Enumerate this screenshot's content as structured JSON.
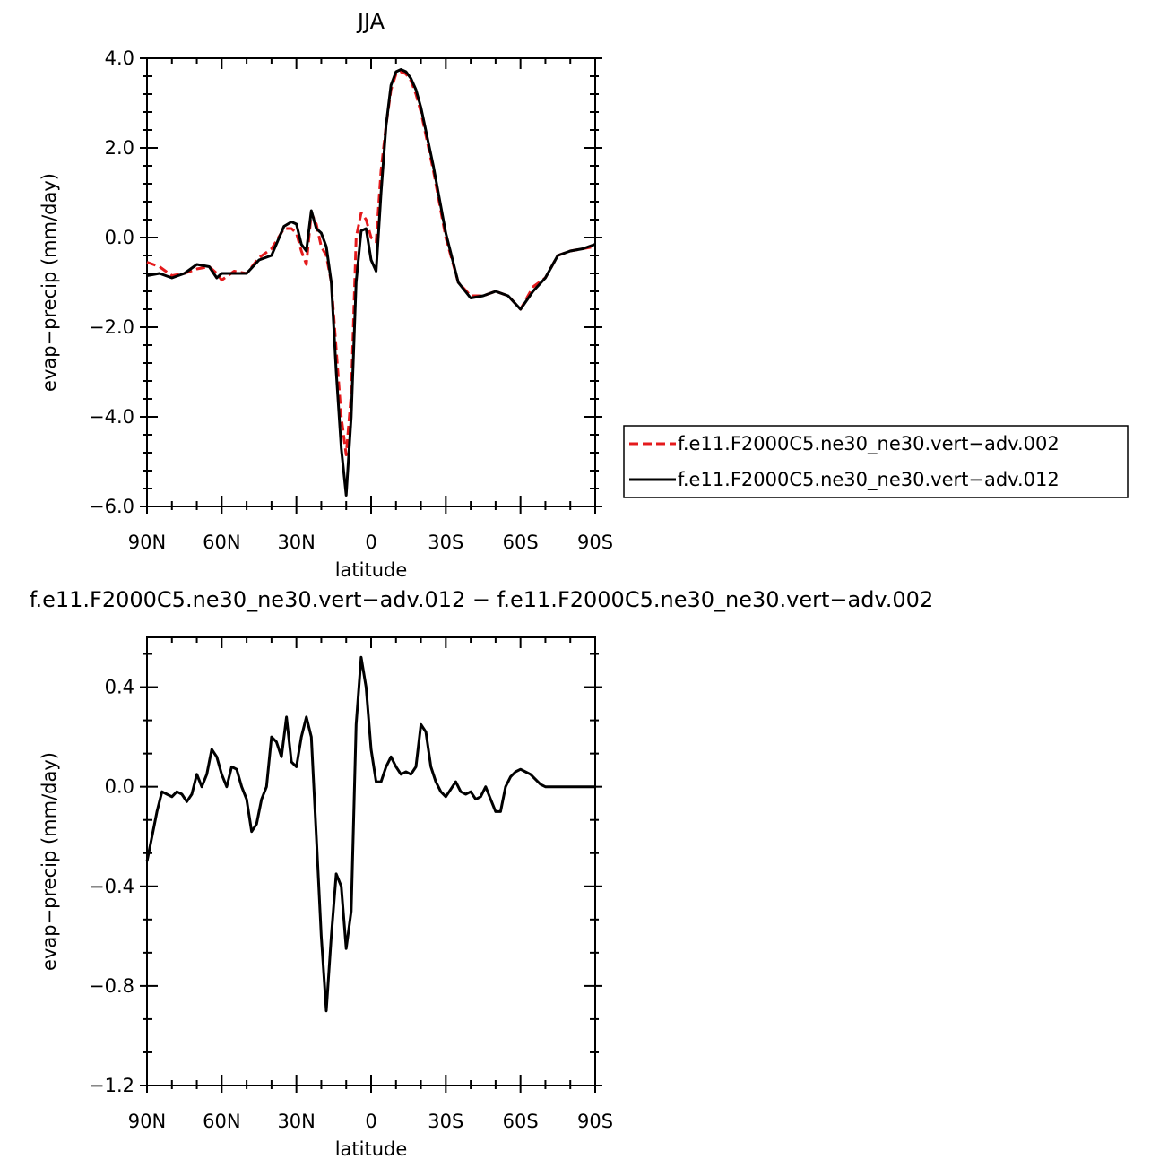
{
  "chart_data": [
    {
      "type": "line",
      "title": "JJA",
      "xlabel": "latitude",
      "ylabel": "evap−precip (mm/day)",
      "xlim": [
        90,
        -90
      ],
      "ylim": [
        -6.0,
        4.0
      ],
      "x_ticks": [
        90,
        60,
        30,
        0,
        -30,
        -60,
        -90
      ],
      "x_tick_labels": [
        "90N",
        "60N",
        "30N",
        "0",
        "30S",
        "60S",
        "90S"
      ],
      "y_ticks": [
        4.0,
        2.0,
        0.0,
        -2.0,
        -4.0,
        -6.0
      ],
      "y_tick_labels": [
        "4.0",
        "2.0",
        "0.0",
        "−2.0",
        "−4.0",
        "−6.0"
      ],
      "legend_position": "right",
      "series": [
        {
          "name": "f.e11.F2000C5.ne30_ne30.vert−adv.002",
          "color": "#e41a1c",
          "dash": "dashed",
          "x": [
            90,
            85,
            80,
            75,
            70,
            65,
            62,
            60,
            55,
            50,
            45,
            40,
            35,
            32,
            30,
            28,
            26,
            24,
            22,
            20,
            18,
            16,
            14,
            12,
            10,
            8,
            6,
            4,
            2,
            0,
            -2,
            -4,
            -6,
            -8,
            -10,
            -12,
            -14,
            -16,
            -18,
            -20,
            -25,
            -30,
            -35,
            -40,
            -45,
            -50,
            -55,
            -60,
            -65,
            -70,
            -75,
            -80,
            -85,
            -90
          ],
          "y": [
            -0.55,
            -0.65,
            -0.85,
            -0.8,
            -0.7,
            -0.65,
            -0.8,
            -0.95,
            -0.75,
            -0.8,
            -0.45,
            -0.25,
            0.2,
            0.2,
            0.1,
            -0.3,
            -0.6,
            0.55,
            0.3,
            -0.2,
            -0.4,
            -1.0,
            -2.5,
            -4.0,
            -4.85,
            -3.5,
            0.0,
            0.55,
            0.4,
            0.0,
            -0.1,
            1.5,
            2.5,
            3.3,
            3.65,
            3.7,
            3.65,
            3.5,
            3.2,
            2.8,
            1.5,
            0.0,
            -1.0,
            -1.3,
            -1.3,
            -1.2,
            -1.3,
            -1.6,
            -1.1,
            -0.9,
            -0.4,
            -0.3,
            -0.25,
            -0.2
          ]
        },
        {
          "name": "f.e11.F2000C5.ne30_ne30.vert−adv.012",
          "color": "#000000",
          "dash": "solid",
          "x": [
            90,
            85,
            80,
            75,
            70,
            65,
            62,
            60,
            55,
            50,
            45,
            40,
            35,
            32,
            30,
            28,
            26,
            24,
            22,
            20,
            18,
            16,
            14,
            12,
            10,
            8,
            6,
            4,
            2,
            0,
            -2,
            -4,
            -6,
            -8,
            -10,
            -12,
            -14,
            -16,
            -18,
            -20,
            -25,
            -30,
            -35,
            -40,
            -45,
            -50,
            -55,
            -60,
            -65,
            -70,
            -75,
            -80,
            -85,
            -90
          ],
          "y": [
            -0.85,
            -0.8,
            -0.9,
            -0.8,
            -0.6,
            -0.65,
            -0.9,
            -0.8,
            -0.8,
            -0.8,
            -0.5,
            -0.4,
            0.25,
            0.35,
            0.3,
            -0.15,
            -0.3,
            0.6,
            0.2,
            0.1,
            -0.2,
            -1.0,
            -3.0,
            -4.7,
            -5.75,
            -4.0,
            -1.0,
            0.15,
            0.2,
            -0.5,
            -0.75,
            1.0,
            2.5,
            3.4,
            3.7,
            3.75,
            3.7,
            3.55,
            3.3,
            2.9,
            1.6,
            0.1,
            -1.0,
            -1.35,
            -1.3,
            -1.2,
            -1.3,
            -1.6,
            -1.2,
            -0.9,
            -0.4,
            -0.3,
            -0.25,
            -0.15
          ]
        }
      ]
    },
    {
      "type": "line",
      "title": "f.e11.F2000C5.ne30_ne30.vert−adv.012 − f.e11.F2000C5.ne30_ne30.vert−adv.002",
      "xlabel": "latitude",
      "ylabel": "evap−precip (mm/day)",
      "xlim": [
        90,
        -90
      ],
      "ylim": [
        -1.2,
        0.6
      ],
      "x_ticks": [
        90,
        60,
        30,
        0,
        -30,
        -60,
        -90
      ],
      "x_tick_labels": [
        "90N",
        "60N",
        "30N",
        "0",
        "30S",
        "60S",
        "90S"
      ],
      "y_ticks": [
        0.4,
        0.0,
        -0.4,
        -0.8,
        -1.2
      ],
      "y_tick_labels": [
        "0.4",
        "0.0",
        "−0.4",
        "−0.8",
        "−1.2"
      ],
      "series": [
        {
          "color": "#000000",
          "dash": "solid",
          "x": [
            90,
            88,
            86,
            84,
            82,
            80,
            78,
            76,
            74,
            72,
            70,
            68,
            66,
            64,
            62,
            60,
            58,
            56,
            54,
            52,
            50,
            48,
            46,
            44,
            42,
            40,
            38,
            36,
            34,
            32,
            30,
            28,
            26,
            24,
            22,
            20,
            18,
            16,
            14,
            12,
            10,
            8,
            6,
            4,
            2,
            0,
            -2,
            -4,
            -6,
            -8,
            -10,
            -12,
            -14,
            -16,
            -18,
            -20,
            -22,
            -24,
            -26,
            -28,
            -30,
            -32,
            -34,
            -36,
            -38,
            -40,
            -42,
            -44,
            -46,
            -48,
            -50,
            -52,
            -54,
            -56,
            -58,
            -60,
            -62,
            -64,
            -66,
            -68,
            -70,
            -72,
            -74,
            -76,
            -78,
            -80,
            -82,
            -84,
            -86,
            -88,
            -90
          ],
          "y": [
            -0.3,
            -0.2,
            -0.1,
            -0.02,
            -0.03,
            -0.04,
            -0.02,
            -0.03,
            -0.06,
            -0.03,
            0.05,
            0.0,
            0.05,
            0.15,
            0.12,
            0.05,
            0.0,
            0.08,
            0.07,
            0.0,
            -0.05,
            -0.18,
            -0.15,
            -0.05,
            0.0,
            0.2,
            0.18,
            0.12,
            0.28,
            0.1,
            0.08,
            0.2,
            0.28,
            0.2,
            -0.2,
            -0.6,
            -0.9,
            -0.6,
            -0.35,
            -0.4,
            -0.65,
            -0.5,
            0.25,
            0.52,
            0.4,
            0.15,
            0.02,
            0.02,
            0.08,
            0.12,
            0.08,
            0.05,
            0.06,
            0.05,
            0.08,
            0.25,
            0.22,
            0.08,
            0.02,
            -0.02,
            -0.04,
            -0.01,
            0.02,
            -0.02,
            -0.03,
            -0.02,
            -0.05,
            -0.04,
            0.0,
            -0.05,
            -0.1,
            -0.1,
            0.0,
            0.04,
            0.06,
            0.07,
            0.06,
            0.05,
            0.03,
            0.01,
            0.0,
            0.0,
            0.0,
            0.0,
            0.0,
            0.0,
            0.0,
            0.0,
            0.0,
            0.0,
            0.0
          ]
        }
      ]
    }
  ]
}
